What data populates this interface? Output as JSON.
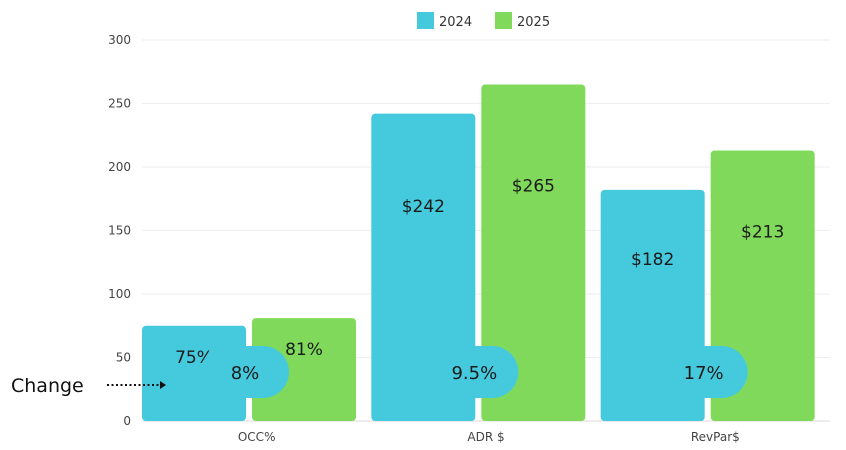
{
  "chart_data": {
    "type": "bar",
    "categories": [
      "OCC%",
      "ADR $",
      "RevPar$"
    ],
    "series": [
      {
        "name": "2024",
        "color": "#44C9DD",
        "values": [
          75,
          242,
          182
        ],
        "labels": [
          "75%",
          "$242",
          "$182"
        ]
      },
      {
        "name": "2025",
        "color": "#80D95A",
        "values": [
          81,
          265,
          213
        ],
        "labels": [
          "81%",
          "$265",
          "$213"
        ]
      }
    ],
    "ylim": [
      0,
      300
    ],
    "yticks": [
      0,
      50,
      100,
      150,
      200,
      250,
      300
    ],
    "grid": true,
    "legend": "top-center",
    "change": {
      "label": "Change",
      "values": [
        "8%",
        "9.5%",
        "17%"
      ]
    }
  }
}
